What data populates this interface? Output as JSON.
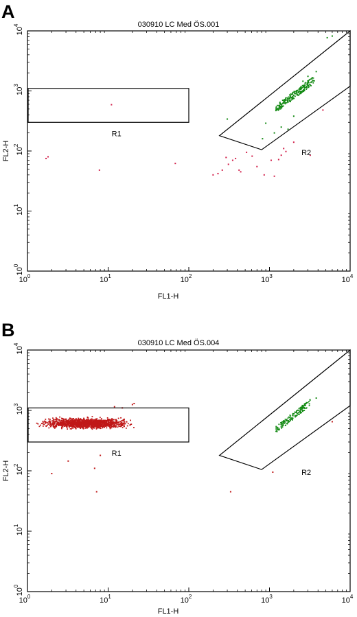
{
  "chart_data": [
    {
      "type": "scatter",
      "panel_label": "A",
      "title": "030910 LC Med ÖS.001",
      "xlabel": "FL1-H",
      "ylabel": "FL2-H",
      "x_scale": "log",
      "y_scale": "log",
      "xlim": [
        1,
        10000
      ],
      "ylim": [
        1,
        10000
      ],
      "x_ticks": [
        {
          "base": "10",
          "exp": "0"
        },
        {
          "base": "10",
          "exp": "1"
        },
        {
          "base": "10",
          "exp": "2"
        },
        {
          "base": "10",
          "exp": "3"
        },
        {
          "base": "10",
          "exp": "4"
        }
      ],
      "y_ticks": [
        {
          "base": "10",
          "exp": "0"
        },
        {
          "base": "10",
          "exp": "1"
        },
        {
          "base": "10",
          "exp": "2"
        },
        {
          "base": "10",
          "exp": "3"
        },
        {
          "base": "10",
          "exp": "4"
        }
      ],
      "grid": false,
      "regions": [
        {
          "label": "R1",
          "shape": "rectangle",
          "x_range": [
            1,
            100
          ],
          "y_range": [
            300,
            1100
          ]
        },
        {
          "label": "R2",
          "shape": "polygon",
          "vertices": [
            [
              240,
              180
            ],
            [
              800,
              105
            ],
            [
              10000,
              1200
            ],
            [
              10000,
              10000
            ]
          ]
        }
      ],
      "series": [
        {
          "color": "#d21f4a",
          "points": [
            [
              1.7,
              75
            ],
            [
              1.8,
              80
            ],
            [
              7.8,
              48
            ],
            [
              11,
              590
            ],
            [
              68,
              62
            ],
            [
              200,
              40
            ],
            [
              230,
              42
            ],
            [
              260,
              48
            ],
            [
              290,
              78
            ],
            [
              310,
              60
            ],
            [
              350,
              70
            ],
            [
              380,
              75
            ],
            [
              420,
              48
            ],
            [
              440,
              45
            ],
            [
              520,
              95
            ],
            [
              610,
              82
            ],
            [
              700,
              55
            ],
            [
              860,
              40
            ],
            [
              1050,
              70
            ],
            [
              1150,
              38
            ],
            [
              1300,
              72
            ],
            [
              1400,
              85
            ],
            [
              1500,
              110
            ],
            [
              1600,
              98
            ],
            [
              2000,
              140
            ],
            [
              3200,
              85
            ],
            [
              4600,
              480
            ]
          ]
        },
        {
          "color": "#138a13",
          "cluster": {
            "x_from": 1200,
            "x_to": 3600,
            "y_from": 500,
            "y_to": 1550,
            "count": 220
          },
          "points": [
            [
              300,
              340
            ],
            [
              820,
              160
            ],
            [
              900,
              290
            ],
            [
              1150,
              200
            ],
            [
              1400,
              250
            ],
            [
              1700,
              230
            ],
            [
              2000,
              380
            ],
            [
              2600,
              1450
            ],
            [
              3000,
              1750
            ],
            [
              3800,
              2100
            ],
            [
              5200,
              7700
            ],
            [
              6000,
              8200
            ]
          ]
        }
      ]
    },
    {
      "type": "scatter",
      "panel_label": "B",
      "title": "030910 LC Med ÖS.004",
      "xlabel": "FL1-H",
      "ylabel": "FL2-H",
      "x_scale": "log",
      "y_scale": "log",
      "xlim": [
        1,
        10000
      ],
      "ylim": [
        1,
        10000
      ],
      "x_ticks": [
        {
          "base": "10",
          "exp": "0"
        },
        {
          "base": "10",
          "exp": "1"
        },
        {
          "base": "10",
          "exp": "2"
        },
        {
          "base": "10",
          "exp": "3"
        },
        {
          "base": "10",
          "exp": "4"
        }
      ],
      "y_ticks": [
        {
          "base": "10",
          "exp": "0"
        },
        {
          "base": "10",
          "exp": "1"
        },
        {
          "base": "10",
          "exp": "2"
        },
        {
          "base": "10",
          "exp": "3"
        },
        {
          "base": "10",
          "exp": "4"
        }
      ],
      "grid": false,
      "regions": [
        {
          "label": "R1",
          "shape": "rectangle",
          "x_range": [
            1,
            100
          ],
          "y_range": [
            300,
            1100
          ]
        },
        {
          "label": "R2",
          "shape": "polygon",
          "vertices": [
            [
              240,
              180
            ],
            [
              800,
              105
            ],
            [
              10000,
              1200
            ],
            [
              10000,
              10000
            ]
          ]
        }
      ],
      "series": [
        {
          "color": "#c01818",
          "cluster": {
            "x_from": 1.1,
            "x_to": 25,
            "y_from": 470,
            "y_to": 800,
            "count": 1400
          },
          "points": [
            [
              2.0,
              90
            ],
            [
              3.2,
              145
            ],
            [
              6.8,
              110
            ],
            [
              7.2,
              45
            ],
            [
              8.0,
              180
            ],
            [
              15,
              1100
            ],
            [
              20,
              1250
            ],
            [
              21,
              1300
            ],
            [
              12,
              1150
            ],
            [
              330,
              45
            ],
            [
              1100,
              95
            ],
            [
              6000,
              650
            ]
          ]
        },
        {
          "color": "#138a13",
          "cluster": {
            "x_from": 1200,
            "x_to": 3200,
            "y_from": 480,
            "y_to": 1350,
            "count": 150
          },
          "points": [
            [
              3800,
              1600
            ],
            [
              2800,
              1300
            ]
          ]
        }
      ]
    }
  ]
}
